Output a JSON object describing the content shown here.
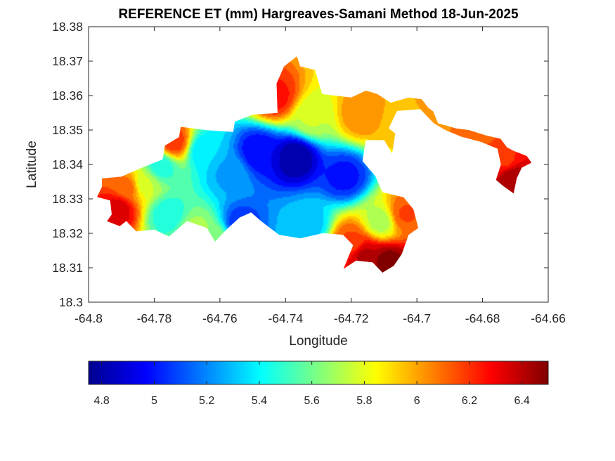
{
  "chart_data": {
    "type": "heatmap",
    "title": "REFERENCE ET (mm) Hargreaves-Samani Method  18-Jun-2025",
    "xlabel": "Longitude",
    "ylabel": "Latitude",
    "xlim": [
      -64.8,
      -64.66
    ],
    "ylim": [
      18.3,
      18.38
    ],
    "x_ticks": [
      "-64.8",
      "-64.78",
      "-64.76",
      "-64.74",
      "-64.72",
      "-64.7",
      "-64.68",
      "-64.66"
    ],
    "y_ticks": [
      "18.3",
      "18.31",
      "18.32",
      "18.33",
      "18.34",
      "18.35",
      "18.36",
      "18.37",
      "18.38"
    ],
    "grid": false,
    "colorbar": {
      "placement": "bottom",
      "colormap": "jet",
      "range": [
        4.75,
        6.5
      ],
      "ticks": [
        "4.8",
        "5",
        "5.2",
        "5.4",
        "5.6",
        "5.8",
        "6",
        "6.2",
        "6.4"
      ],
      "tick_values": [
        4.8,
        5.0,
        5.2,
        5.4,
        5.6,
        5.8,
        6.0,
        6.2,
        6.4
      ]
    },
    "field": {
      "background_value": 5.55,
      "features": [
        {
          "lon": -64.737,
          "lat": 18.342,
          "value": 4.8
        },
        {
          "lon": -64.748,
          "lat": 18.3435,
          "value": 4.95
        },
        {
          "lon": -64.722,
          "lat": 18.3365,
          "value": 5.0
        },
        {
          "lon": -64.757,
          "lat": 18.3375,
          "value": 5.25
        },
        {
          "lon": -64.765,
          "lat": 18.344,
          "value": 5.35
        },
        {
          "lon": -64.778,
          "lat": 18.3395,
          "value": 5.45
        },
        {
          "lon": -64.783,
          "lat": 18.3345,
          "value": 5.75
        },
        {
          "lon": -64.776,
          "lat": 18.3255,
          "value": 5.45
        },
        {
          "lon": -64.754,
          "lat": 18.3225,
          "value": 5.05
        },
        {
          "lon": -64.733,
          "lat": 18.3225,
          "value": 5.3
        },
        {
          "lon": -64.711,
          "lat": 18.3235,
          "value": 5.7
        },
        {
          "lon": -64.732,
          "lat": 18.3535,
          "value": 5.75
        },
        {
          "lon": -64.743,
          "lat": 18.3595,
          "value": 6.25
        },
        {
          "lon": -64.717,
          "lat": 18.3545,
          "value": 6.05
        },
        {
          "lon": -64.705,
          "lat": 18.352,
          "value": 5.95
        },
        {
          "lon": -64.694,
          "lat": 18.359,
          "value": 6.0
        },
        {
          "lon": -64.682,
          "lat": 18.3505,
          "value": 6.1
        },
        {
          "lon": -64.673,
          "lat": 18.341,
          "value": 6.2
        },
        {
          "lon": -64.671,
          "lat": 18.3365,
          "value": 6.45
        },
        {
          "lon": -64.791,
          "lat": 18.327,
          "value": 6.35
        },
        {
          "lon": -64.788,
          "lat": 18.3335,
          "value": 6.1
        },
        {
          "lon": -64.774,
          "lat": 18.3465,
          "value": 6.2
        },
        {
          "lon": -64.716,
          "lat": 18.3135,
          "value": 6.4
        },
        {
          "lon": -64.709,
          "lat": 18.3115,
          "value": 6.5
        },
        {
          "lon": -64.704,
          "lat": 18.3255,
          "value": 6.15
        },
        {
          "lon": -64.72,
          "lat": 18.3175,
          "value": 6.15
        },
        {
          "lon": -64.767,
          "lat": 18.3205,
          "value": 5.7
        },
        {
          "lon": -64.7615,
          "lat": 18.3185,
          "value": 5.65
        }
      ]
    },
    "land_outline": [
      [
        -64.796,
        18.336
      ],
      [
        -64.79,
        18.3365
      ],
      [
        -64.784,
        18.339
      ],
      [
        -64.7775,
        18.3415
      ],
      [
        -64.7768,
        18.3455
      ],
      [
        -64.7725,
        18.348
      ],
      [
        -64.772,
        18.351
      ],
      [
        -64.764,
        18.35
      ],
      [
        -64.756,
        18.3495
      ],
      [
        -64.7555,
        18.3525
      ],
      [
        -64.75,
        18.3545
      ],
      [
        -64.7425,
        18.355
      ],
      [
        -64.7428,
        18.3635
      ],
      [
        -64.7405,
        18.3685
      ],
      [
        -64.7365,
        18.3715
      ],
      [
        -64.7355,
        18.3685
      ],
      [
        -64.731,
        18.3675
      ],
      [
        -64.7288,
        18.3605
      ],
      [
        -64.72,
        18.3595
      ],
      [
        -64.7155,
        18.3615
      ],
      [
        -64.712,
        18.3605
      ],
      [
        -64.708,
        18.358
      ],
      [
        -64.7025,
        18.3595
      ],
      [
        -64.6985,
        18.359
      ],
      [
        -64.6965,
        18.3565
      ],
      [
        -64.695,
        18.3555
      ],
      [
        -64.6935,
        18.352
      ],
      [
        -64.688,
        18.3505
      ],
      [
        -64.684,
        18.35
      ],
      [
        -64.679,
        18.3485
      ],
      [
        -64.6745,
        18.3475
      ],
      [
        -64.6725,
        18.345
      ],
      [
        -64.6705,
        18.344
      ],
      [
        -64.6665,
        18.3425
      ],
      [
        -64.665,
        18.3405
      ],
      [
        -64.668,
        18.339
      ],
      [
        -64.6695,
        18.336
      ],
      [
        -64.6705,
        18.3315
      ],
      [
        -64.6735,
        18.3335
      ],
      [
        -64.676,
        18.3355
      ],
      [
        -64.6745,
        18.34
      ],
      [
        -64.6755,
        18.3445
      ],
      [
        -64.6805,
        18.3465
      ],
      [
        -64.6865,
        18.348
      ],
      [
        -64.6915,
        18.35
      ],
      [
        -64.695,
        18.352
      ],
      [
        -64.699,
        18.356
      ],
      [
        -64.706,
        18.3555
      ],
      [
        -64.7085,
        18.3505
      ],
      [
        -64.7065,
        18.349
      ],
      [
        -64.7075,
        18.343
      ],
      [
        -64.71,
        18.347
      ],
      [
        -64.7155,
        18.347
      ],
      [
        -64.7165,
        18.341
      ],
      [
        -64.7125,
        18.3365
      ],
      [
        -64.7105,
        18.332
      ],
      [
        -64.704,
        18.3305
      ],
      [
        -64.701,
        18.327
      ],
      [
        -64.6995,
        18.3215
      ],
      [
        -64.7025,
        18.3195
      ],
      [
        -64.7045,
        18.314
      ],
      [
        -64.707,
        18.3105
      ],
      [
        -64.7105,
        18.3085
      ],
      [
        -64.7135,
        18.3115
      ],
      [
        -64.7185,
        18.312
      ],
      [
        -64.7225,
        18.3095
      ],
      [
        -64.7195,
        18.3165
      ],
      [
        -64.7225,
        18.3195
      ],
      [
        -64.7285,
        18.32
      ],
      [
        -64.7355,
        18.3185
      ],
      [
        -64.742,
        18.3195
      ],
      [
        -64.7475,
        18.3235
      ],
      [
        -64.7505,
        18.326
      ],
      [
        -64.754,
        18.3245
      ],
      [
        -64.758,
        18.321
      ],
      [
        -64.7615,
        18.3175
      ],
      [
        -64.764,
        18.3215
      ],
      [
        -64.77,
        18.3235
      ],
      [
        -64.7755,
        18.319
      ],
      [
        -64.78,
        18.321
      ],
      [
        -64.7855,
        18.3205
      ],
      [
        -64.7885,
        18.3235
      ],
      [
        -64.7905,
        18.322
      ],
      [
        -64.7945,
        18.3235
      ],
      [
        -64.793,
        18.3255
      ],
      [
        -64.7935,
        18.3295
      ],
      [
        -64.7975,
        18.3305
      ],
      [
        -64.796,
        18.3335
      ]
    ]
  }
}
